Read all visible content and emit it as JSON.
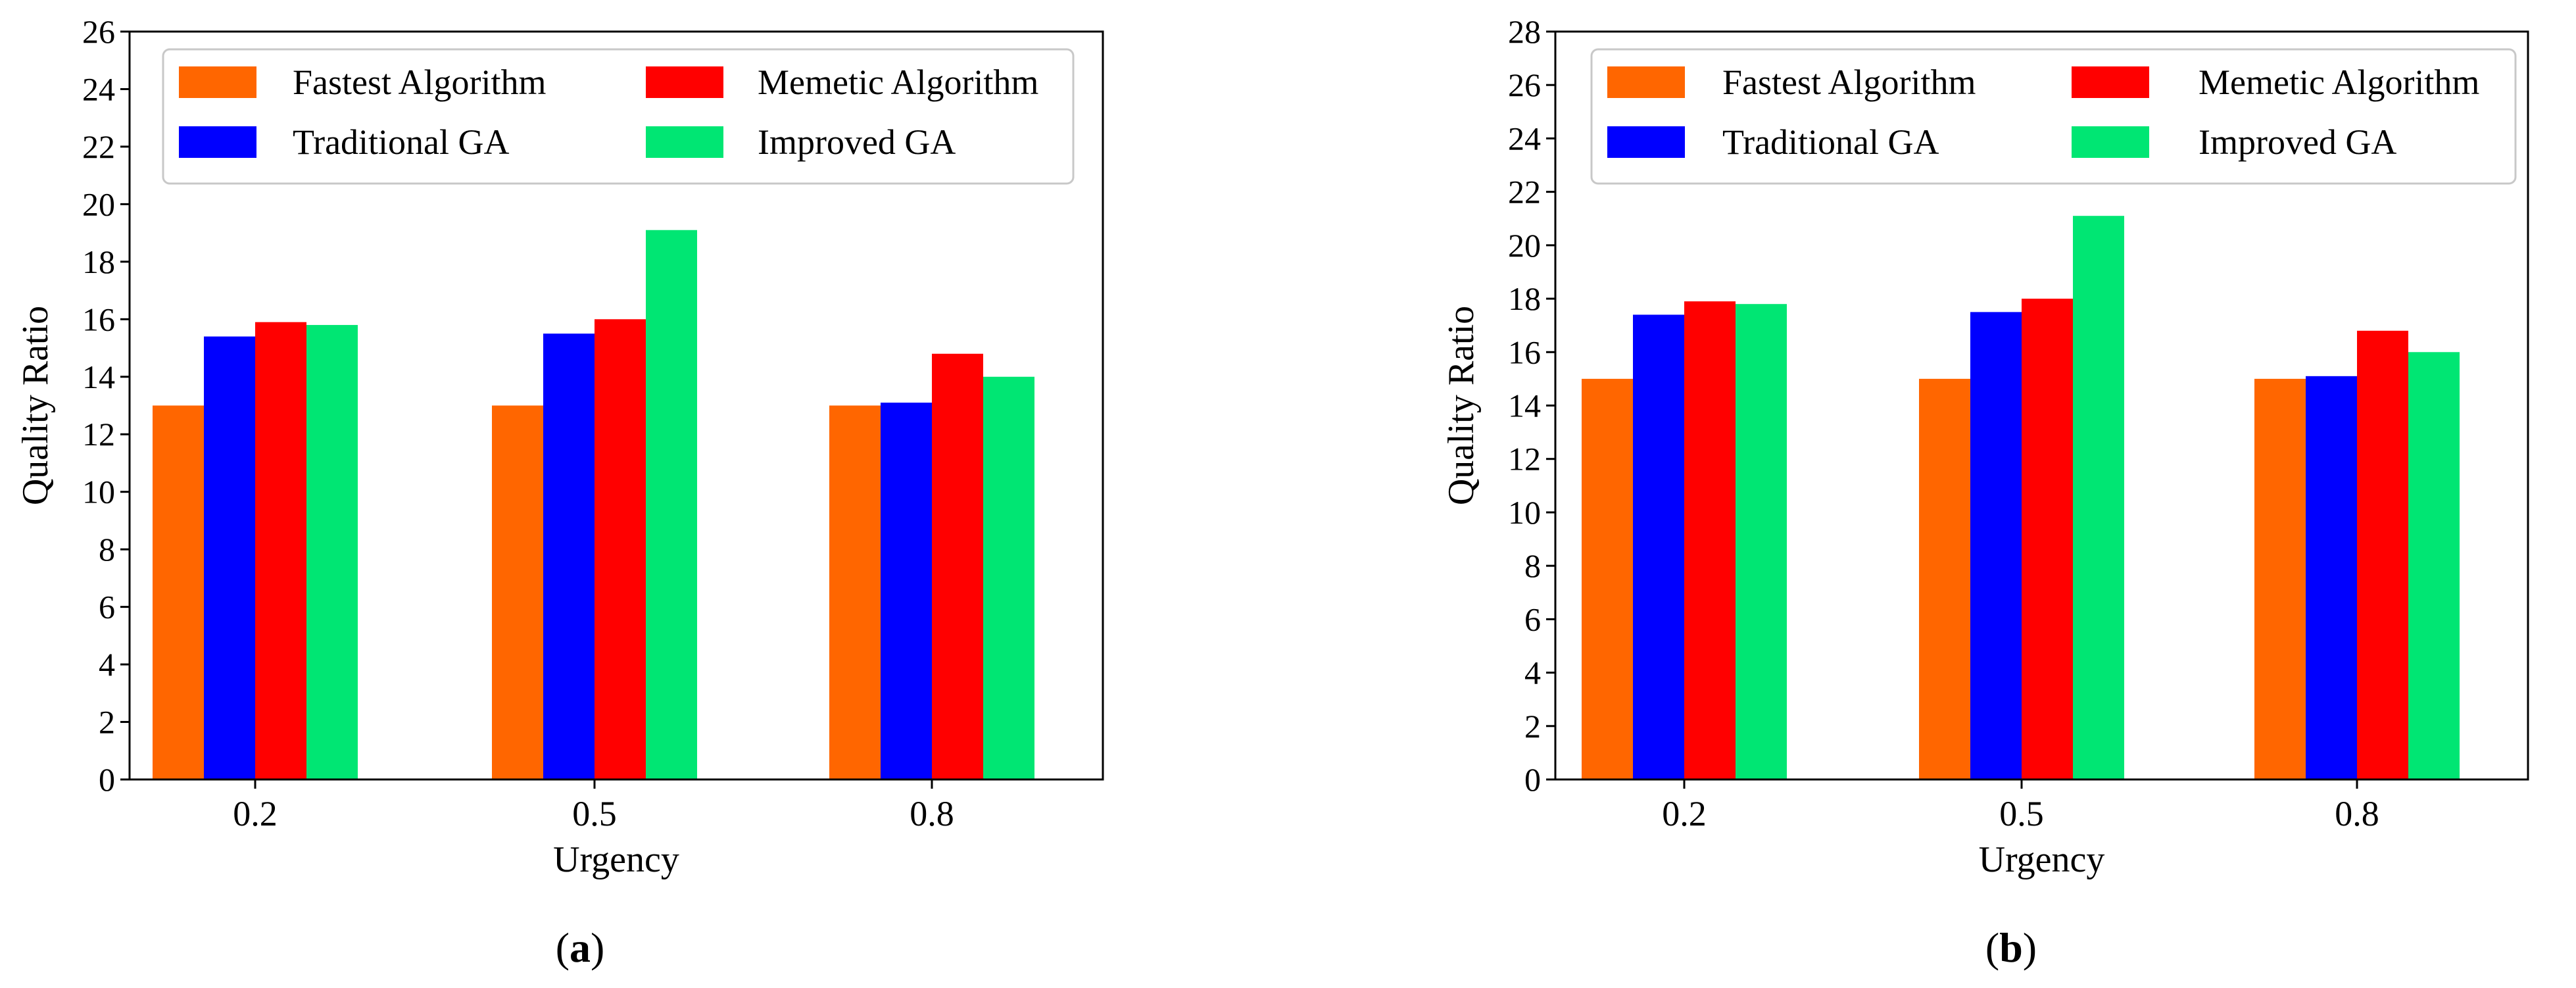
{
  "chart_data": [
    {
      "panel": "a",
      "caption_prefix": "(",
      "caption_letter": "a",
      "caption_suffix": ")",
      "type": "bar",
      "xlabel": "Urgency",
      "ylabel": "Quality Ratio",
      "categories": [
        "0.2",
        "0.5",
        "0.8"
      ],
      "ylim": [
        0,
        26
      ],
      "yticks": [
        "0",
        "2",
        "4",
        "6",
        "8",
        "10",
        "12",
        "14",
        "16",
        "18",
        "20",
        "22",
        "24",
        "26"
      ],
      "legend_position": "top",
      "series": [
        {
          "name": "Fastest Algorithm",
          "values": [
            13.0,
            13.0,
            13.0
          ]
        },
        {
          "name": "Traditional GA",
          "values": [
            15.4,
            15.5,
            13.1
          ]
        },
        {
          "name": "Memetic Algorithm",
          "values": [
            15.9,
            16.0,
            14.8
          ]
        },
        {
          "name": "Improved GA",
          "values": [
            15.8,
            19.1,
            14.0
          ]
        }
      ]
    },
    {
      "panel": "b",
      "caption_prefix": "(",
      "caption_letter": "b",
      "caption_suffix": ")",
      "type": "bar",
      "xlabel": "Urgency",
      "ylabel": "Quality Ratio",
      "categories": [
        "0.2",
        "0.5",
        "0.8"
      ],
      "ylim": [
        0,
        28
      ],
      "yticks": [
        "0",
        "2",
        "4",
        "6",
        "8",
        "10",
        "12",
        "14",
        "16",
        "18",
        "20",
        "22",
        "24",
        "26",
        "28"
      ],
      "legend_position": "top",
      "series": [
        {
          "name": "Fastest Algorithm",
          "values": [
            15.0,
            15.0,
            15.0
          ]
        },
        {
          "name": "Traditional GA",
          "values": [
            17.4,
            17.5,
            15.1
          ]
        },
        {
          "name": "Memetic Algorithm",
          "values": [
            17.9,
            18.0,
            16.8
          ]
        },
        {
          "name": "Improved GA",
          "values": [
            17.8,
            21.1,
            16.0
          ]
        }
      ]
    }
  ],
  "colors": {
    "Fastest Algorithm": "#ff6600",
    "Traditional GA": "#0000ff",
    "Memetic Algorithm": "#ff0000",
    "Improved GA": "#00e673"
  }
}
